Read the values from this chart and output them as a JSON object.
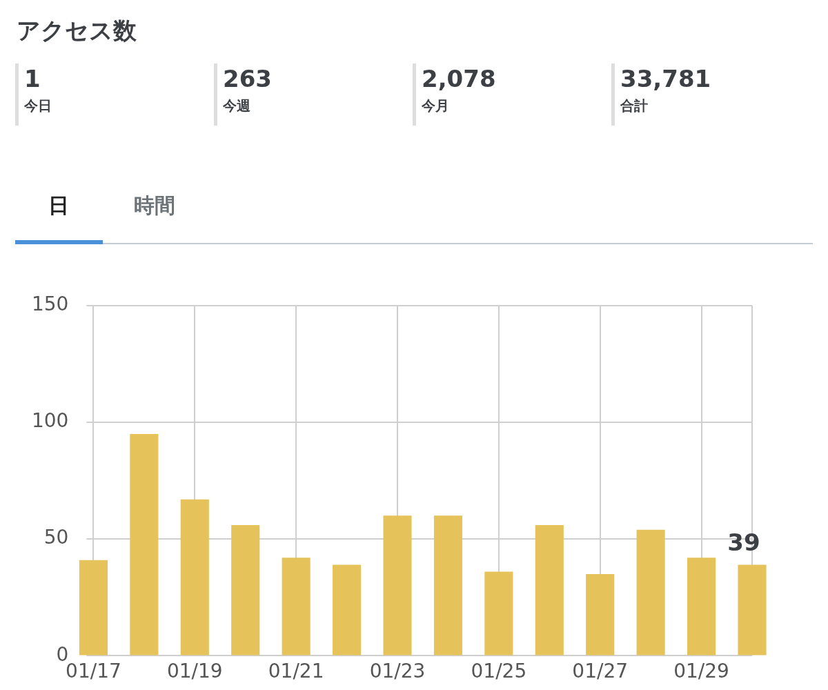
{
  "chart_data": {
    "type": "bar",
    "title": "アクセス数",
    "annotations": [
      "1",
      "今日",
      "263",
      "今週",
      "2,078",
      "今月",
      "33,781",
      "合計",
      "日",
      "時間"
    ],
    "categories": [
      "01/17",
      null,
      "01/19",
      null,
      "01/21",
      null,
      "01/23",
      null,
      "01/25",
      null,
      "01/27",
      null,
      "01/29",
      null
    ],
    "values": [
      41,
      95,
      67,
      56,
      42,
      39,
      60,
      60,
      36,
      56,
      35,
      54,
      42,
      39
    ],
    "value_labels": [
      null,
      null,
      null,
      null,
      null,
      null,
      null,
      null,
      null,
      null,
      null,
      null,
      null,
      "39"
    ],
    "color": "#e5c35a",
    "ylim": [
      0,
      150
    ],
    "yticks": [
      0,
      50,
      100,
      150
    ],
    "grid": true
  }
}
